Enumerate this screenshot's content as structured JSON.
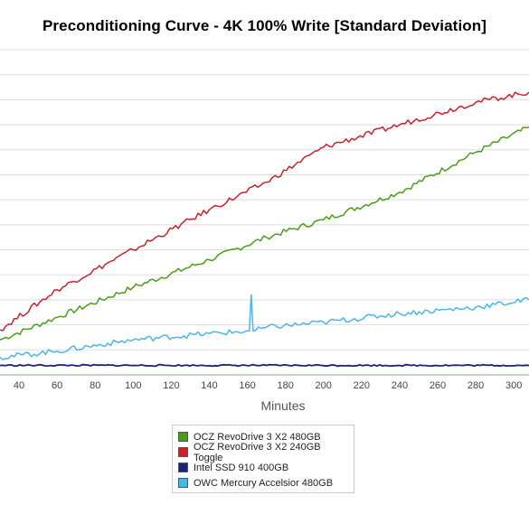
{
  "chart_data": {
    "type": "line",
    "title": "Preconditioning Curve - 4K 100% Write [Standard Deviation]",
    "xlabel": "Minutes",
    "ylabel": "",
    "x_ticks": [
      40,
      60,
      80,
      100,
      120,
      140,
      160,
      180,
      200,
      220,
      240,
      260,
      280,
      300
    ],
    "xlim": [
      30,
      308
    ],
    "ylim": [
      0,
      13
    ],
    "y_gridlines": 13,
    "grid": true,
    "legend_placement": "bottom-center",
    "series": [
      {
        "name": "OCZ RevoDrive 3 X2 480GB",
        "color": "#4a9e16",
        "x": [
          30,
          60,
          100,
          140,
          170,
          200,
          240,
          280,
          308
        ],
        "y": [
          1.4,
          2.3,
          3.5,
          4.6,
          5.5,
          6.2,
          7.3,
          8.9,
          9.9
        ]
      },
      {
        "name": "OCZ RevoDrive 3 X2 240GB Toggle",
        "color": "#c8232c",
        "x": [
          30,
          60,
          100,
          140,
          170,
          200,
          240,
          280,
          308
        ],
        "y": [
          1.8,
          3.4,
          5.0,
          6.6,
          7.7,
          9.1,
          10.0,
          10.9,
          11.3
        ]
      },
      {
        "name": "Intel SSD 910 400GB",
        "color": "#1b237c",
        "x": [
          30,
          100,
          170,
          240,
          308
        ],
        "y": [
          0.38,
          0.38,
          0.38,
          0.38,
          0.38
        ]
      },
      {
        "name": "OWC Mercury Accelsior 480GB",
        "color": "#4db6e8",
        "x": [
          30,
          60,
          100,
          140,
          161,
          162,
          163,
          170,
          200,
          240,
          280,
          308
        ],
        "y": [
          0.7,
          0.95,
          1.4,
          1.65,
          1.75,
          3.2,
          1.75,
          1.9,
          2.1,
          2.45,
          2.7,
          3.0
        ]
      }
    ]
  }
}
